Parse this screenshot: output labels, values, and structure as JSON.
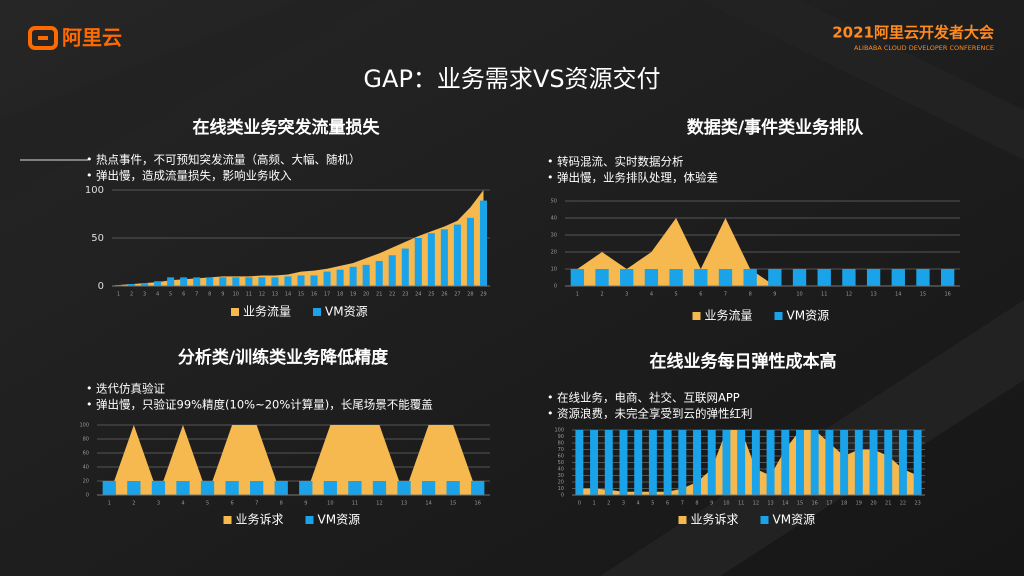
{
  "header": {
    "logo": "阿里云",
    "conference": "2021阿里云开发者大会",
    "conference_en": "ALIBABA CLOUD DEVELOPER CONFERENCE",
    "title": "GAP：业务需求VS资源交付"
  },
  "chart_data": [
    {
      "type": "combo",
      "title": "在线类业务突发流量损失",
      "notes": [
        "热点事件，不可预知突发流量（高频、大幅、随机）",
        "弹出慢，造成流量损失，影响业务收入"
      ],
      "categories": [
        "1",
        "2",
        "3",
        "4",
        "5",
        "6",
        "7",
        "8",
        "9",
        "10",
        "11",
        "12",
        "13",
        "14",
        "15",
        "16",
        "17",
        "18",
        "19",
        "20",
        "21",
        "22",
        "23",
        "24",
        "25",
        "26",
        "27",
        "28",
        "29"
      ],
      "series": [
        {
          "name": "业务流量",
          "kind": "area",
          "color": "#f5b94f",
          "values": [
            1,
            2,
            3,
            4,
            6,
            7,
            8,
            9,
            10,
            10,
            10,
            11,
            11,
            12,
            15,
            16,
            18,
            21,
            24,
            29,
            34,
            40,
            46,
            52,
            57,
            62,
            68,
            82,
            100
          ]
        },
        {
          "name": "VM资源",
          "kind": "bar",
          "color": "#1aa3e8",
          "values": [
            1,
            2,
            3,
            5,
            9,
            9,
            9,
            9,
            9,
            9,
            9,
            9,
            9,
            10,
            11,
            11,
            15,
            17,
            20,
            22,
            26,
            32,
            39,
            50,
            55,
            59,
            64,
            71,
            89
          ]
        }
      ],
      "ylim": [
        0,
        100
      ],
      "yticks": [
        0,
        50,
        100
      ],
      "grid": true
    },
    {
      "type": "combo",
      "title": "数据类/事件类业务排队",
      "notes": [
        "转码混流、实时数据分析",
        "弹出慢，业务排队处理，体验差"
      ],
      "categories": [
        "1",
        "2",
        "3",
        "4",
        "5",
        "6",
        "7",
        "8",
        "9",
        "10",
        "11",
        "12",
        "13",
        "14",
        "15",
        "16"
      ],
      "series": [
        {
          "name": "业务流量",
          "kind": "area",
          "color": "#f5b94f",
          "values": [
            10,
            20,
            10,
            20,
            40,
            10,
            40,
            10,
            0,
            0,
            0,
            0,
            0,
            0,
            0,
            0
          ]
        },
        {
          "name": "VM资源",
          "kind": "bar",
          "color": "#1aa3e8",
          "values": [
            10,
            10,
            10,
            10,
            10,
            10,
            10,
            10,
            10,
            10,
            10,
            10,
            10,
            10,
            10,
            10
          ]
        }
      ],
      "ylim": [
        0,
        50
      ],
      "yticks": [
        0,
        10,
        20,
        30,
        40,
        50
      ],
      "grid": true
    },
    {
      "type": "combo",
      "title": "分析类/训练类业务降低精度",
      "notes": [
        "迭代仿真验证",
        "弹出慢，只验证99%精度(10%~20%计算量)，长尾场景不能覆盖"
      ],
      "categories": [
        "1",
        "2",
        "3",
        "4",
        "5",
        "6",
        "7",
        "8",
        "9",
        "10",
        "11",
        "12",
        "13",
        "14",
        "15",
        "16"
      ],
      "series": [
        {
          "name": "业务诉求",
          "kind": "area",
          "color": "#f5b94f",
          "values": [
            0,
            100,
            0,
            100,
            0,
            100,
            100,
            0,
            0,
            100,
            100,
            100,
            0,
            100,
            100,
            0
          ]
        },
        {
          "name": "VM资源",
          "kind": "bar",
          "color": "#1aa3e8",
          "values": [
            20,
            20,
            20,
            20,
            20,
            20,
            20,
            20,
            20,
            20,
            20,
            20,
            20,
            20,
            20,
            20
          ]
        }
      ],
      "ylim": [
        0,
        100
      ],
      "yticks": [
        0,
        20,
        40,
        60,
        80,
        100
      ],
      "grid": true
    },
    {
      "type": "combo",
      "title": "在线业务每日弹性成本高",
      "notes": [
        "在线业务，电商、社交、互联网APP",
        "资源浪费，未完全享受到云的弹性红利"
      ],
      "categories": [
        "0",
        "1",
        "2",
        "3",
        "4",
        "5",
        "6",
        "7",
        "8",
        "9",
        "10",
        "11",
        "12",
        "13",
        "14",
        "15",
        "16",
        "17",
        "18",
        "19",
        "20",
        "21",
        "22",
        "23"
      ],
      "series": [
        {
          "name": "业务诉求",
          "kind": "area",
          "color": "#f5b94f",
          "values": [
            10,
            10,
            8,
            5,
            5,
            5,
            5,
            10,
            20,
            40,
            100,
            100,
            40,
            30,
            70,
            100,
            100,
            80,
            60,
            70,
            70,
            60,
            40,
            30
          ]
        },
        {
          "name": "VM资源",
          "kind": "bar",
          "color": "#1aa3e8",
          "values": [
            100,
            100,
            100,
            100,
            100,
            100,
            100,
            100,
            100,
            100,
            100,
            100,
            100,
            100,
            100,
            100,
            100,
            100,
            100,
            100,
            100,
            100,
            100,
            100
          ]
        }
      ],
      "ylim": [
        0,
        100
      ],
      "yticks": [
        0,
        10,
        20,
        30,
        40,
        50,
        60,
        70,
        80,
        90,
        100
      ],
      "grid": true
    }
  ]
}
